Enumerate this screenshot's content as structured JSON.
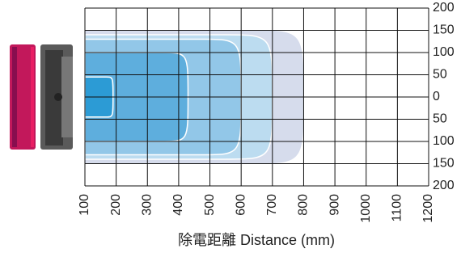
{
  "chart_data": {
    "type": "zone",
    "x_label": "除電距離  Distance (mm)",
    "xlim": [
      100,
      1200
    ],
    "xticks": [
      100,
      200,
      300,
      400,
      500,
      600,
      700,
      800,
      900,
      1000,
      1100,
      1200
    ],
    "ylim": [
      -200,
      200
    ],
    "yticks": [
      {
        "value": -200,
        "label": "200"
      },
      {
        "value": -150,
        "label": "150"
      },
      {
        "value": -100,
        "label": "100"
      },
      {
        "value": -50,
        "label": "50"
      },
      0,
      50,
      100,
      150,
      200
    ],
    "grid": true,
    "zones": [
      {
        "color": "#d6dcec",
        "reach": 800,
        "width": 150
      },
      {
        "color": "#bcdcf0",
        "reach": 700,
        "width": 140
      },
      {
        "color": "#92c7e8",
        "reach": 600,
        "width": 130
      },
      {
        "color": "#5eaedd",
        "reach": 430,
        "width": 100
      },
      {
        "color": "#2c9bd5",
        "reach": 190,
        "width": 45
      }
    ]
  }
}
